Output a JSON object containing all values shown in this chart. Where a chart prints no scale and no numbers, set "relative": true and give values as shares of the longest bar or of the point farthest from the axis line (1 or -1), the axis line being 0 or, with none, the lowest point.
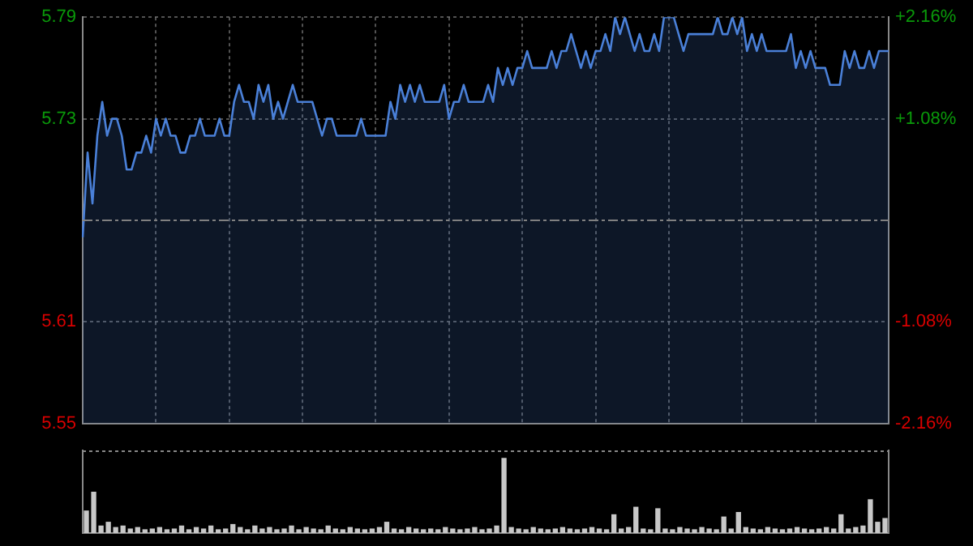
{
  "chart_data": [
    {
      "type": "area",
      "categories": [
        null,
        null,
        null,
        null,
        null,
        null,
        null,
        null,
        null,
        null,
        null,
        null,
        null,
        null,
        null,
        null,
        null,
        null,
        null,
        null,
        null,
        null,
        null,
        null,
        null,
        null,
        null,
        null,
        null,
        null,
        null,
        null,
        null,
        null,
        null,
        null,
        null,
        null,
        null,
        null,
        null,
        null,
        null,
        null,
        null,
        null,
        null,
        null,
        null,
        null,
        null,
        null,
        null,
        null,
        null,
        null,
        null,
        null,
        null,
        null,
        null,
        null,
        null,
        null,
        null,
        null,
        null,
        null,
        null,
        null,
        null,
        null,
        null,
        null,
        null,
        null,
        null,
        null,
        null,
        null,
        null,
        null,
        null,
        null,
        null,
        null,
        null,
        null,
        null,
        null,
        null,
        null,
        null,
        null,
        null,
        null,
        null,
        null,
        null,
        null,
        null,
        null,
        null,
        null,
        null,
        null,
        null,
        null,
        null,
        null,
        null,
        null,
        null,
        null,
        null,
        null,
        null,
        null,
        null,
        null,
        null,
        null,
        null,
        null,
        null,
        null,
        null,
        null,
        null,
        null,
        null,
        null,
        null,
        null,
        null,
        null,
        null,
        null,
        null,
        null,
        null,
        null,
        null,
        null,
        null,
        null,
        null,
        null,
        null,
        null,
        null,
        null,
        null,
        null,
        null,
        null,
        null,
        null,
        null,
        null,
        null,
        null,
        null,
        null,
        null,
        null
      ],
      "series": [
        {
          "color": "#4a80d8",
          "values": [
            5.66,
            5.71,
            5.68,
            5.72,
            5.74,
            5.72,
            5.73,
            5.73,
            5.72,
            5.7,
            5.7,
            5.71,
            5.71,
            5.72,
            5.71,
            5.73,
            5.72,
            5.73,
            5.72,
            5.72,
            5.71,
            5.71,
            5.72,
            5.72,
            5.73,
            5.72,
            5.72,
            5.72,
            5.73,
            5.72,
            5.72,
            5.74,
            5.75,
            5.74,
            5.74,
            5.73,
            5.75,
            5.74,
            5.75,
            5.73,
            5.74,
            5.73,
            5.74,
            5.75,
            5.74,
            5.74,
            5.74,
            5.74,
            5.73,
            5.72,
            5.73,
            5.73,
            5.72,
            5.72,
            5.72,
            5.72,
            5.72,
            5.73,
            5.72,
            5.72,
            5.72,
            5.72,
            5.72,
            5.74,
            5.73,
            5.75,
            5.74,
            5.75,
            5.74,
            5.75,
            5.74,
            5.74,
            5.74,
            5.74,
            5.75,
            5.73,
            5.74,
            5.74,
            5.75,
            5.74,
            5.74,
            5.74,
            5.74,
            5.75,
            5.74,
            5.76,
            5.75,
            5.76,
            5.75,
            5.76,
            5.76,
            5.77,
            5.76,
            5.76,
            5.76,
            5.76,
            5.77,
            5.76,
            5.77,
            5.77,
            5.78,
            5.77,
            5.76,
            5.77,
            5.76,
            5.77,
            5.77,
            5.78,
            5.77,
            5.79,
            5.78,
            5.79,
            5.78,
            5.77,
            5.78,
            5.77,
            5.77,
            5.78,
            5.77,
            5.79,
            5.79,
            5.79,
            5.78,
            5.77,
            5.78,
            5.78,
            5.78,
            5.78,
            5.78,
            5.78,
            5.79,
            5.78,
            5.78,
            5.79,
            5.78,
            5.79,
            5.77,
            5.78,
            5.77,
            5.78,
            5.77,
            5.77,
            5.77,
            5.77,
            5.77,
            5.78,
            5.76,
            5.77,
            5.76,
            5.77,
            5.76,
            5.76,
            5.76,
            5.75,
            5.75,
            5.75,
            5.77,
            5.76,
            5.77,
            5.76,
            5.76,
            5.77,
            5.76,
            5.77,
            5.77,
            5.77
          ]
        }
      ],
      "ylim": [
        5.55,
        5.79
      ],
      "yticks": [
        5.55,
        5.61,
        5.73,
        5.79
      ],
      "y2lim": [
        -2.16,
        2.16
      ],
      "y2ticks": [
        {
          "value": -2.16,
          "label": "-2.16%"
        },
        {
          "value": -1.08,
          "label": "-1.08%"
        },
        {
          "value": 1.08,
          "label": "+1.08%"
        },
        {
          "value": 2.16,
          "label": "+2.16%"
        }
      ],
      "ref_lines": [
        {
          "axis": "y",
          "value": 5.67,
          "color": "#808080",
          "line_style": "dashed"
        }
      ],
      "grid": true,
      "legend": false,
      "marker": "none",
      "line_style": "solid"
    },
    {
      "type": "bar",
      "relative": true,
      "color": "#c8c8c8",
      "categories": [
        null,
        null,
        null,
        null,
        null,
        null,
        null,
        null,
        null,
        null,
        null,
        null,
        null,
        null,
        null,
        null,
        null,
        null,
        null,
        null,
        null,
        null,
        null,
        null,
        null,
        null,
        null,
        null,
        null,
        null,
        null,
        null,
        null,
        null,
        null,
        null,
        null,
        null,
        null,
        null,
        null,
        null,
        null,
        null,
        null,
        null,
        null,
        null,
        null,
        null,
        null,
        null,
        null,
        null,
        null,
        null,
        null,
        null,
        null,
        null,
        null,
        null,
        null,
        null,
        null,
        null,
        null,
        null,
        null,
        null,
        null,
        null,
        null,
        null,
        null,
        null,
        null,
        null,
        null,
        null,
        null,
        null,
        null,
        null,
        null,
        null,
        null,
        null,
        null,
        null,
        null,
        null,
        null,
        null,
        null,
        null,
        null,
        null,
        null,
        null,
        null,
        null,
        null,
        null,
        null,
        null,
        null,
        null,
        null,
        null
      ],
      "values": [
        0.3,
        0.55,
        0.1,
        0.15,
        0.08,
        0.1,
        0.06,
        0.08,
        0.05,
        0.06,
        0.08,
        0.05,
        0.06,
        0.1,
        0.05,
        0.08,
        0.06,
        0.1,
        0.05,
        0.06,
        0.12,
        0.08,
        0.05,
        0.1,
        0.06,
        0.08,
        0.05,
        0.06,
        0.1,
        0.05,
        0.08,
        0.06,
        0.05,
        0.1,
        0.06,
        0.05,
        0.08,
        0.06,
        0.05,
        0.06,
        0.08,
        0.15,
        0.06,
        0.05,
        0.08,
        0.06,
        0.05,
        0.06,
        0.05,
        0.08,
        0.06,
        0.05,
        0.06,
        0.08,
        0.05,
        0.06,
        0.1,
        1.0,
        0.08,
        0.06,
        0.05,
        0.08,
        0.06,
        0.05,
        0.06,
        0.08,
        0.06,
        0.05,
        0.06,
        0.08,
        0.06,
        0.05,
        0.25,
        0.06,
        0.08,
        0.35,
        0.06,
        0.05,
        0.33,
        0.06,
        0.05,
        0.08,
        0.06,
        0.05,
        0.08,
        0.06,
        0.05,
        0.22,
        0.06,
        0.28,
        0.08,
        0.06,
        0.05,
        0.08,
        0.06,
        0.05,
        0.06,
        0.08,
        0.06,
        0.05,
        0.06,
        0.08,
        0.06,
        0.25,
        0.06,
        0.08,
        0.1,
        0.45,
        0.15,
        0.2
      ]
    }
  ]
}
